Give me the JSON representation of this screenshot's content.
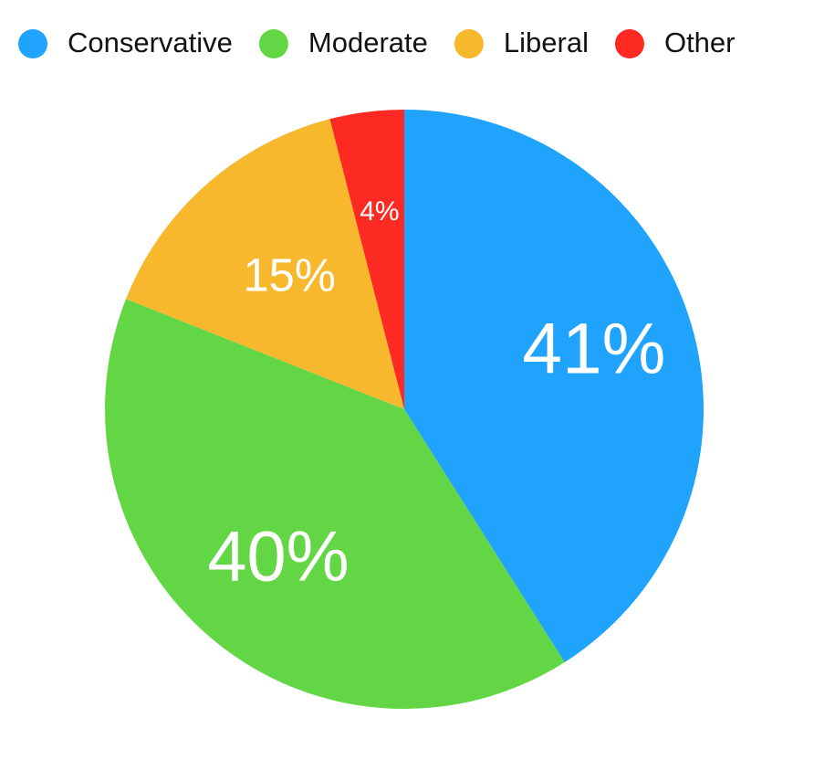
{
  "chart_data": {
    "type": "pie",
    "categories": [
      "Conservative",
      "Moderate",
      "Liberal",
      "Other"
    ],
    "values": [
      41,
      40,
      15,
      4
    ],
    "value_labels": [
      "41%",
      "40%",
      "15%",
      "4%"
    ],
    "colors": [
      "#1fa3fd",
      "#62d645",
      "#f7b82d",
      "#fc2a22"
    ],
    "legend": "top"
  }
}
